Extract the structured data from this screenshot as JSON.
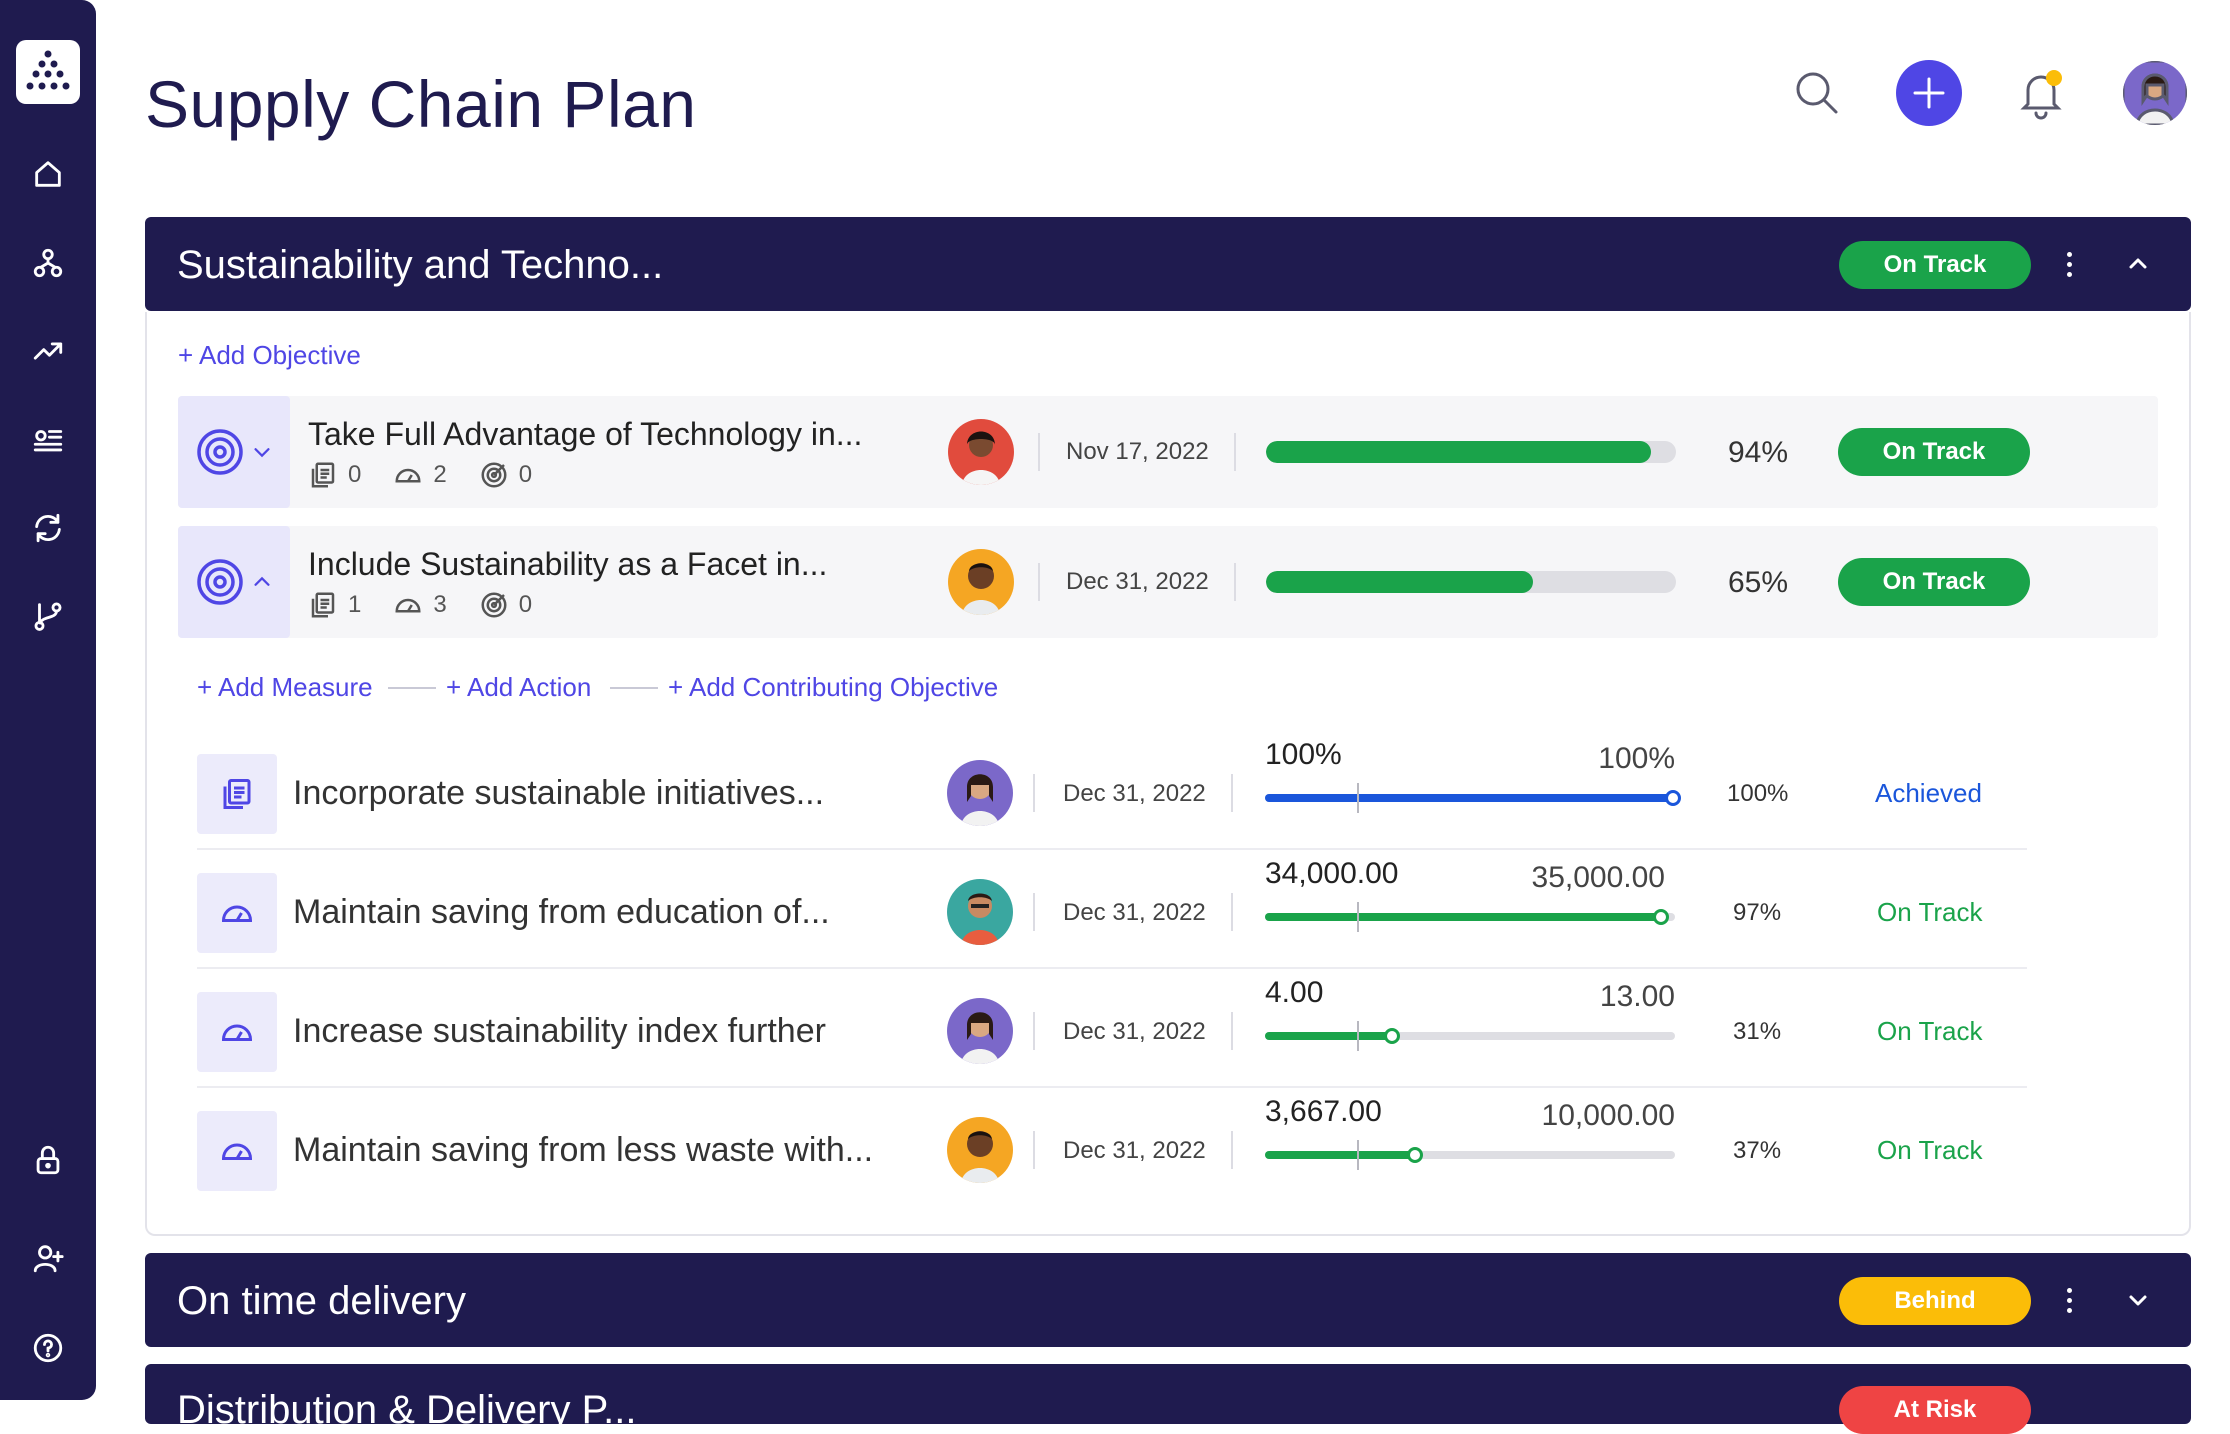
{
  "colors": {
    "sidebar": "#1f1b4f",
    "accent": "#4f46e5",
    "green": "#1aa34a",
    "yellow": "#fbbd08",
    "red": "#ef4444",
    "blue": "#1a56db"
  },
  "sidebar": {
    "items": [
      {
        "icon": "home-icon"
      },
      {
        "icon": "hierarchy-icon"
      },
      {
        "icon": "trending-icon"
      },
      {
        "icon": "list-icon"
      },
      {
        "icon": "refresh-icon"
      },
      {
        "icon": "branch-icon"
      },
      {
        "icon": "lock-icon"
      },
      {
        "icon": "add-user-icon"
      },
      {
        "icon": "help-icon"
      }
    ]
  },
  "header": {
    "title": "Supply Chain Plan"
  },
  "sections": [
    {
      "title": "Sustainability and Techno...",
      "status": "On Track",
      "add_objective": "+ Add Objective",
      "objectives": [
        {
          "title": "Take Full Advantage of Technology in...",
          "measures_count": "0",
          "actions_count": "2",
          "objectives_count": "0",
          "date": "Nov 17, 2022",
          "progress": 94,
          "progress_label": "94%",
          "status": "On Track"
        },
        {
          "title": "Include Sustainability as a Facet in...",
          "measures_count": "1",
          "actions_count": "3",
          "objectives_count": "0",
          "date": "Dec 31, 2022",
          "progress": 65,
          "progress_label": "65%",
          "status": "On Track"
        }
      ],
      "add_links": {
        "measure": "+ Add Measure",
        "action": "+ Add Action",
        "contributing": "+ Add Contributing Objective"
      },
      "measures": [
        {
          "title": "Incorporate sustainable initiatives...",
          "date": "Dec 31, 2022",
          "current": "100%",
          "target": "100%",
          "progress": 100,
          "pct": "100%",
          "status": "Achieved"
        },
        {
          "title": "Maintain saving from education of...",
          "date": "Dec 31, 2022",
          "current": "34,000.00",
          "target": "35,000.00",
          "progress": 97,
          "pct": "97%",
          "status": "On Track"
        },
        {
          "title": "Increase sustainability index further",
          "date": "Dec 31, 2022",
          "current": "4.00",
          "target": "13.00",
          "progress": 31,
          "pct": "31%",
          "status": "On Track"
        },
        {
          "title": "Maintain saving from less waste with...",
          "date": "Dec 31, 2022",
          "current": "3,667.00",
          "target": "10,000.00",
          "progress": 37,
          "pct": "37%",
          "status": "On Track"
        }
      ]
    },
    {
      "title": "On time delivery",
      "status": "Behind"
    },
    {
      "title": "Distribution & Delivery P...",
      "status": "At Risk"
    }
  ]
}
